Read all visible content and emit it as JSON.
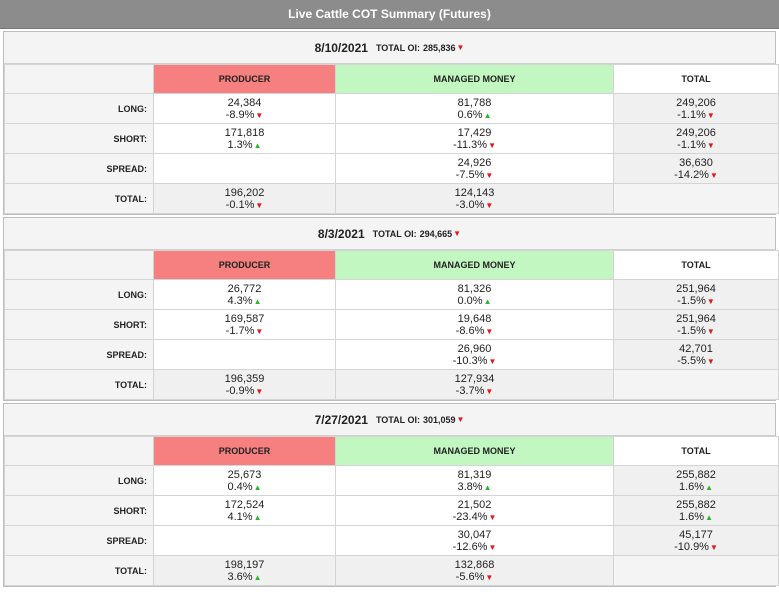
{
  "title": "Live Cattle COT Summary (Futures)",
  "colors": {
    "producer": "#f67f7f",
    "managed_money": "#c2f7c2",
    "up": "#2bb52b",
    "down": "#e01818"
  },
  "icons": {
    "up": "triangle-up-icon",
    "down": "triangle-down-icon"
  },
  "headers": {
    "producer": "PRODUCER",
    "managed": "MANAGED MONEY",
    "total": "TOTAL"
  },
  "row_labels": {
    "long": "LONG:",
    "short": "SHORT:",
    "spread": "SPREAD:",
    "total": "TOTAL:"
  },
  "oi_label": "TOTAL OI:",
  "blocks": [
    {
      "date": "8/10/2021",
      "oi": "285,836",
      "oi_dir": "down",
      "long": {
        "producer": {
          "value": "24,384",
          "pct": "-8.9%",
          "dir": "down"
        },
        "managed": {
          "value": "81,788",
          "pct": "0.6%",
          "dir": "up"
        },
        "total": {
          "value": "249,206",
          "pct": "-1.1%",
          "dir": "down"
        }
      },
      "short": {
        "producer": {
          "value": "171,818",
          "pct": "1.3%",
          "dir": "up"
        },
        "managed": {
          "value": "17,429",
          "pct": "-11.3%",
          "dir": "down"
        },
        "total": {
          "value": "249,206",
          "pct": "-1.1%",
          "dir": "down"
        }
      },
      "spread": {
        "managed": {
          "value": "24,926",
          "pct": "-7.5%",
          "dir": "down"
        },
        "total": {
          "value": "36,630",
          "pct": "-14.2%",
          "dir": "down"
        }
      },
      "total": {
        "producer": {
          "value": "196,202",
          "pct": "-0.1%",
          "dir": "down"
        },
        "managed": {
          "value": "124,143",
          "pct": "-3.0%",
          "dir": "down"
        }
      }
    },
    {
      "date": "8/3/2021",
      "oi": "294,665",
      "oi_dir": "down",
      "long": {
        "producer": {
          "value": "26,772",
          "pct": "4.3%",
          "dir": "up"
        },
        "managed": {
          "value": "81,326",
          "pct": "0.0%",
          "dir": "up"
        },
        "total": {
          "value": "251,964",
          "pct": "-1.5%",
          "dir": "down"
        }
      },
      "short": {
        "producer": {
          "value": "169,587",
          "pct": "-1.7%",
          "dir": "down"
        },
        "managed": {
          "value": "19,648",
          "pct": "-8.6%",
          "dir": "down"
        },
        "total": {
          "value": "251,964",
          "pct": "-1.5%",
          "dir": "down"
        }
      },
      "spread": {
        "managed": {
          "value": "26,960",
          "pct": "-10.3%",
          "dir": "down"
        },
        "total": {
          "value": "42,701",
          "pct": "-5.5%",
          "dir": "down"
        }
      },
      "total": {
        "producer": {
          "value": "196,359",
          "pct": "-0.9%",
          "dir": "down"
        },
        "managed": {
          "value": "127,934",
          "pct": "-3.7%",
          "dir": "down"
        }
      }
    },
    {
      "date": "7/27/2021",
      "oi": "301,059",
      "oi_dir": "down",
      "long": {
        "producer": {
          "value": "25,673",
          "pct": "0.4%",
          "dir": "up"
        },
        "managed": {
          "value": "81,319",
          "pct": "3.8%",
          "dir": "up"
        },
        "total": {
          "value": "255,882",
          "pct": "1.6%",
          "dir": "up"
        }
      },
      "short": {
        "producer": {
          "value": "172,524",
          "pct": "4.1%",
          "dir": "up"
        },
        "managed": {
          "value": "21,502",
          "pct": "-23.4%",
          "dir": "down"
        },
        "total": {
          "value": "255,882",
          "pct": "1.6%",
          "dir": "up"
        }
      },
      "spread": {
        "managed": {
          "value": "30,047",
          "pct": "-12.6%",
          "dir": "down"
        },
        "total": {
          "value": "45,177",
          "pct": "-10.9%",
          "dir": "down"
        }
      },
      "total": {
        "producer": {
          "value": "198,197",
          "pct": "3.6%",
          "dir": "up"
        },
        "managed": {
          "value": "132,868",
          "pct": "-5.6%",
          "dir": "down"
        }
      }
    }
  ]
}
